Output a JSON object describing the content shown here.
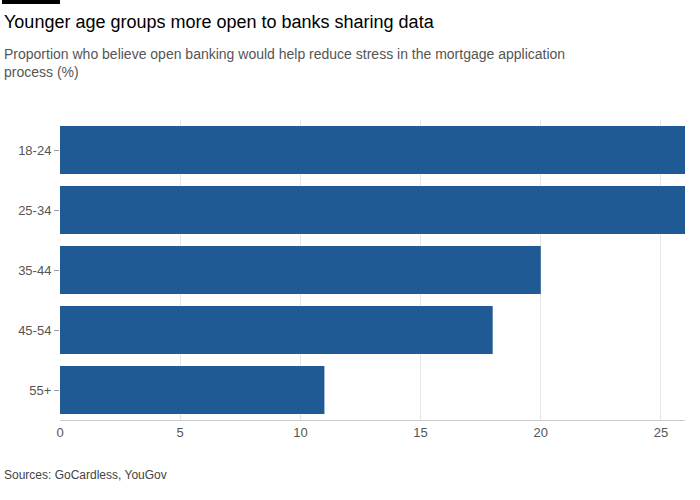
{
  "chart_data": {
    "type": "bar",
    "orientation": "horizontal",
    "title": "Younger age groups more open to banks sharing data",
    "subtitle": "Proportion who believe open banking would help reduce stress in the mortgage application process (%)",
    "source": "Sources: GoCardless, YouGov",
    "categories": [
      "18-24",
      "25-34",
      "35-44",
      "45-54",
      "55+"
    ],
    "values": [
      26,
      26,
      20,
      18,
      11
    ],
    "color": "#1f5a94",
    "xlim": [
      0,
      26
    ],
    "xticks": [
      0,
      5,
      10,
      15,
      20,
      25
    ],
    "grid": true
  }
}
